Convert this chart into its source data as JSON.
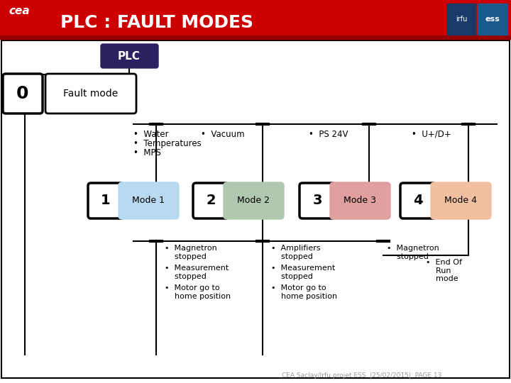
{
  "title": "PLC : FAULT MODES",
  "title_color": "#ffffff",
  "header_bg": "#cc0000",
  "bg_color": "#ffffff",
  "plc_box_text": "PLC",
  "plc_box_bg": "#2d2060",
  "plc_box_fg": "#ffffff",
  "mode0_text": "0",
  "fault_mode_text": "Fault mode",
  "fault_bullets": [
    "Water",
    "Temperatures",
    "MPS"
  ],
  "vacuum_bullets": [
    "Vacuum"
  ],
  "ps24v_bullets": [
    "PS 24V"
  ],
  "upd_bullets": [
    "U+/D+"
  ],
  "modes": [
    {
      "num": "1",
      "label": "Mode 1",
      "color": "#b8d9f0"
    },
    {
      "num": "2",
      "label": "Mode 2",
      "color": "#b0c8b0"
    },
    {
      "num": "3",
      "label": "Mode 3",
      "color": "#e0a0a0"
    },
    {
      "num": "4",
      "label": "Mode 4",
      "color": "#f0c0a0"
    }
  ],
  "mode1_bullets": [
    "Magnetron\nstopped",
    "Measurement\nstopped",
    "Motor go to\nhome position"
  ],
  "mode2_bullets": [
    "Amplifiers\nstopped",
    "Measurement\nstopped",
    "Motor go to\nhome position"
  ],
  "mode3_bullets": [
    "Magnetron\nstopped"
  ],
  "mode4_bullets": [
    "End Of\nRun\nmode"
  ],
  "footer_text": "CEA Saclay/Irfu projet ESS  |25/02/2015|  PAGE 13",
  "footer_color": "#999999"
}
